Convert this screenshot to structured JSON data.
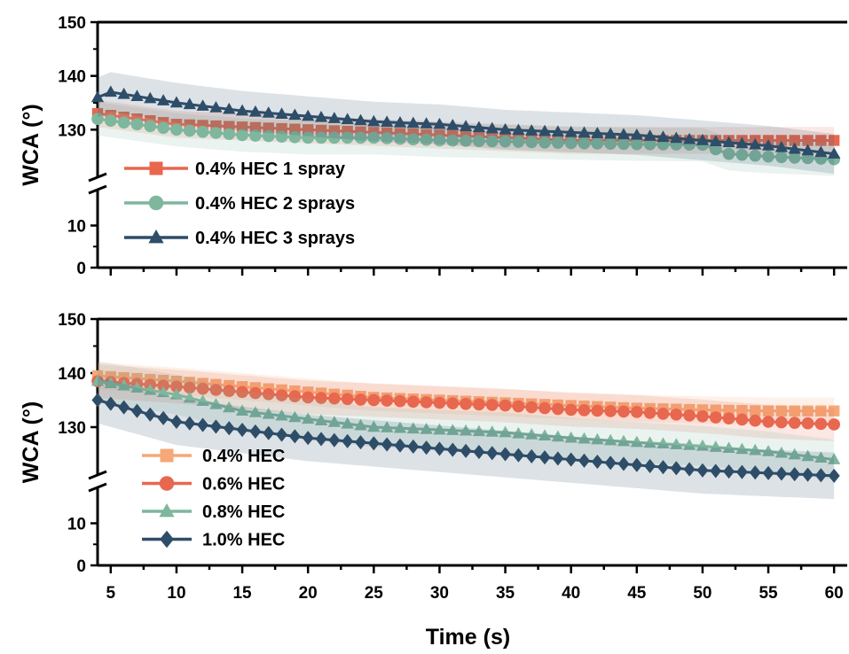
{
  "chart_data": [
    {
      "type": "line",
      "ylabel": "WCA (°)",
      "xlim": [
        4,
        61
      ],
      "y_ticks": [
        0,
        10,
        130,
        140,
        150
      ],
      "y_tick_labels": [
        "0",
        "10",
        "130",
        "140",
        "150"
      ],
      "y_break": "between 10 and 130",
      "x_tick_labels_shown": false,
      "legend_position": "left",
      "series": [
        {
          "name": "0.4% HEC 1 spray",
          "marker": "square",
          "color": "#e8674f",
          "x": [
            4,
            10,
            15,
            20,
            25,
            30,
            35,
            40,
            45,
            50,
            55,
            60
          ],
          "y": [
            133,
            131,
            130.5,
            130,
            129.5,
            129,
            128.5,
            128,
            128,
            128,
            128,
            128
          ]
        },
        {
          "name": "0.4% HEC 2 sprays",
          "marker": "circle",
          "color": "#7fb69e",
          "x": [
            4,
            10,
            15,
            20,
            25,
            30,
            35,
            40,
            45,
            50,
            52,
            55,
            60
          ],
          "y": [
            132,
            130,
            129,
            128.5,
            128.5,
            128,
            127.8,
            127.5,
            127.3,
            127.2,
            125.5,
            125,
            124.5
          ]
        },
        {
          "name": "0.4% HEC 3 sprays",
          "marker": "triangle",
          "color": "#2e4d68",
          "x": [
            4,
            5,
            10,
            15,
            20,
            25,
            30,
            35,
            40,
            45,
            50,
            55,
            60
          ],
          "y": [
            136,
            137,
            135,
            133.5,
            132.5,
            131.5,
            131,
            130,
            129.5,
            129,
            128,
            127,
            125.5
          ]
        }
      ]
    },
    {
      "type": "line",
      "xlabel": "Time (s)",
      "ylabel": "WCA (°)",
      "xlim": [
        4,
        61
      ],
      "x_ticks": [
        5,
        10,
        15,
        20,
        25,
        30,
        35,
        40,
        45,
        50,
        55,
        60
      ],
      "x_tick_labels": [
        "5",
        "10",
        "15",
        "20",
        "25",
        "30",
        "35",
        "40",
        "45",
        "50",
        "55",
        "60"
      ],
      "y_ticks": [
        0,
        10,
        130,
        140,
        150
      ],
      "y_tick_labels": [
        "0",
        "10",
        "130",
        "140",
        "150"
      ],
      "y_break": "between 10 and 130",
      "legend_position": "bottom-left",
      "series": [
        {
          "name": "0.4% HEC",
          "marker": "square",
          "color": "#f5a878",
          "x": [
            4,
            10,
            15,
            20,
            25,
            30,
            35,
            40,
            45,
            50,
            55,
            60
          ],
          "y": [
            139.5,
            138.5,
            137.5,
            136.5,
            135.5,
            135,
            134.5,
            134,
            133.5,
            133.2,
            133,
            133
          ]
        },
        {
          "name": "0.6% HEC",
          "marker": "circle",
          "color": "#e8674f",
          "x": [
            4,
            10,
            15,
            20,
            25,
            30,
            35,
            40,
            45,
            50,
            55,
            60
          ],
          "y": [
            138.5,
            137.5,
            136.5,
            135.5,
            135,
            134.5,
            134,
            133.2,
            132.8,
            132,
            131,
            130.5
          ]
        },
        {
          "name": "0.8% HEC",
          "marker": "triangle",
          "color": "#7fb69e",
          "x": [
            4,
            10,
            15,
            20,
            25,
            30,
            35,
            40,
            45,
            50,
            55,
            60
          ],
          "y": [
            138.5,
            136,
            133,
            131.5,
            130,
            129.5,
            129,
            128,
            127.2,
            126.5,
            125.5,
            124
          ]
        },
        {
          "name": "1.0% HEC",
          "marker": "diamond",
          "color": "#2e4d68",
          "x": [
            4,
            10,
            15,
            20,
            25,
            30,
            35,
            40,
            45,
            50,
            55,
            60
          ],
          "y": [
            135,
            131,
            129.5,
            128,
            127,
            126,
            125,
            124,
            123,
            122,
            121.5,
            121
          ]
        }
      ]
    }
  ]
}
